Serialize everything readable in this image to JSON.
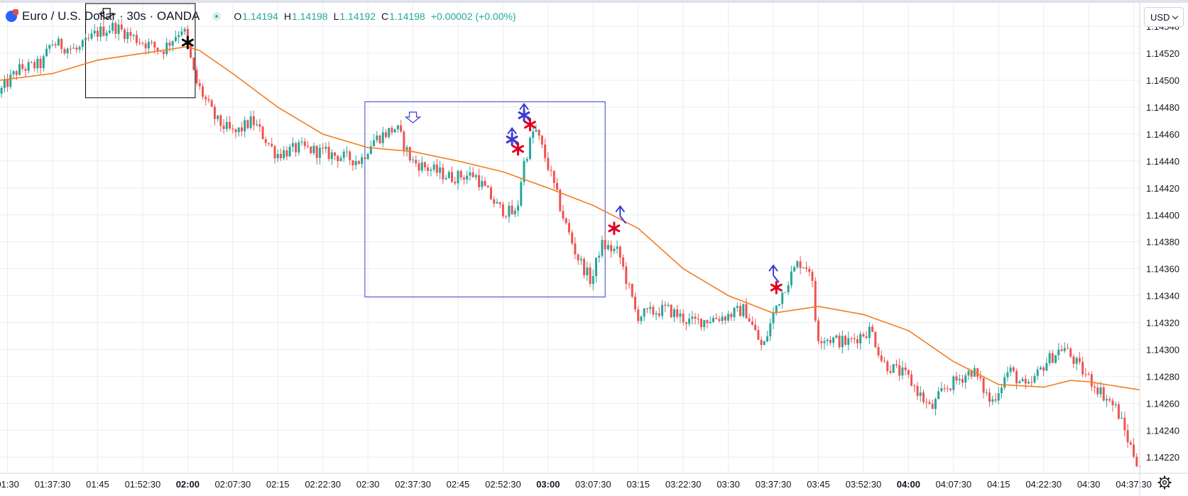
{
  "legend": {
    "symbol_title": "Euro / U.S. Dollar · 30s · OANDA",
    "open_label": "O",
    "open": "1.14194",
    "high_label": "H",
    "high": "1.14198",
    "low_label": "L",
    "low": "1.14192",
    "close_label": "C",
    "close": "1.14198",
    "change": "+0.00002 (+0.00%)"
  },
  "currency_button": "USD",
  "colors": {
    "up": "#26a69a",
    "down": "#ef5350",
    "ma": "#f57c1f",
    "grid": "#e9eef4",
    "box_black": "#000000",
    "box_blue": "#3d3dc8",
    "marker_red": "#e00020",
    "marker_blue": "#3b3bd0"
  },
  "chart_data": {
    "type": "candlestick",
    "title": "Euro / U.S. Dollar · 30s · OANDA",
    "y_axis": {
      "ticks": [
        "1.14540",
        "1.14520",
        "1.14500",
        "1.14480",
        "1.14460",
        "1.14440",
        "1.14420",
        "1.14400",
        "1.14380",
        "1.14360",
        "1.14340",
        "1.14320",
        "1.14300",
        "1.14280",
        "1.14260",
        "1.14240",
        "1.14220"
      ],
      "range": [
        1.14208,
        1.14557
      ]
    },
    "x_axis": {
      "ticks": [
        {
          "label": "01:30",
          "bold": false
        },
        {
          "label": "01:37:30",
          "bold": false
        },
        {
          "label": "01:45",
          "bold": false
        },
        {
          "label": "01:52:30",
          "bold": false
        },
        {
          "label": "02:00",
          "bold": true
        },
        {
          "label": "02:07:30",
          "bold": false
        },
        {
          "label": "02:15",
          "bold": false
        },
        {
          "label": "02:22:30",
          "bold": false
        },
        {
          "label": "02:30",
          "bold": false
        },
        {
          "label": "02:37:30",
          "bold": false
        },
        {
          "label": "02:45",
          "bold": false
        },
        {
          "label": "02:52:30",
          "bold": false
        },
        {
          "label": "03:00",
          "bold": true
        },
        {
          "label": "03:07:30",
          "bold": false
        },
        {
          "label": "03:15",
          "bold": false
        },
        {
          "label": "03:22:30",
          "bold": false
        },
        {
          "label": "03:30",
          "bold": false
        },
        {
          "label": "03:37:30",
          "bold": false
        },
        {
          "label": "03:45",
          "bold": false
        },
        {
          "label": "03:52:30",
          "bold": false
        },
        {
          "label": "04:00",
          "bold": true
        },
        {
          "label": "04:07:30",
          "bold": false
        },
        {
          "label": "04:15",
          "bold": false
        },
        {
          "label": "04:22:30",
          "bold": false
        },
        {
          "label": "04:30",
          "bold": false
        },
        {
          "label": "04:37:30",
          "bold": false
        }
      ],
      "range": [
        "01:28:45",
        "04:38:30"
      ]
    },
    "price_path": [
      [
        "01:28:45",
        1.1449
      ],
      [
        "01:32:00",
        1.14508
      ],
      [
        "01:36:00",
        1.14512
      ],
      [
        "01:37:30",
        1.14528
      ],
      [
        "01:42:00",
        1.14522
      ],
      [
        "01:45:00",
        1.14535
      ],
      [
        "01:48:00",
        1.1454
      ],
      [
        "01:52:00",
        1.1453
      ],
      [
        "01:56:00",
        1.14522
      ],
      [
        "01:59:30",
        1.1454
      ],
      [
        "02:01:30",
        1.145
      ],
      [
        "02:05:00",
        1.1447
      ],
      [
        "02:08:00",
        1.1446
      ],
      [
        "02:11:00",
        1.1447
      ],
      [
        "02:15:00",
        1.14445
      ],
      [
        "02:19:00",
        1.1445
      ],
      [
        "02:24:00",
        1.14445
      ],
      [
        "02:29:00",
        1.1444
      ],
      [
        "02:31:00",
        1.14455
      ],
      [
        "02:35:00",
        1.14465
      ],
      [
        "02:37:30",
        1.1444
      ],
      [
        "02:40:00",
        1.14435
      ],
      [
        "02:44:00",
        1.14428
      ],
      [
        "02:48:00",
        1.1443
      ],
      [
        "02:52:00",
        1.14405
      ],
      [
        "02:55:00",
        1.144
      ],
      [
        "02:56:00",
        1.14435
      ],
      [
        "02:58:00",
        1.14465
      ],
      [
        "03:00:00",
        1.1444
      ],
      [
        "03:03:00",
        1.14395
      ],
      [
        "03:05:00",
        1.1437
      ],
      [
        "03:07:30",
        1.1435
      ],
      [
        "03:09:00",
        1.14378
      ],
      [
        "03:12:00",
        1.14372
      ],
      [
        "03:15:00",
        1.14325
      ],
      [
        "03:20:00",
        1.1433
      ],
      [
        "03:24:00",
        1.1432
      ],
      [
        "03:30:00",
        1.14325
      ],
      [
        "03:33:00",
        1.1433
      ],
      [
        "03:36:00",
        1.143
      ],
      [
        "03:38:00",
        1.1433
      ],
      [
        "03:40:00",
        1.1435
      ],
      [
        "03:42:00",
        1.14365
      ],
      [
        "03:44:00",
        1.1436
      ],
      [
        "03:45:00",
        1.1431
      ],
      [
        "03:50:00",
        1.14305
      ],
      [
        "03:54:00",
        1.14315
      ],
      [
        "03:56:00",
        1.1429
      ],
      [
        "04:00:00",
        1.1428
      ],
      [
        "04:04:00",
        1.14255
      ],
      [
        "04:06:00",
        1.1427
      ],
      [
        "04:11:00",
        1.14285
      ],
      [
        "04:14:00",
        1.1426
      ],
      [
        "04:17:00",
        1.14285
      ],
      [
        "04:20:00",
        1.1427
      ],
      [
        "04:23:00",
        1.1429
      ],
      [
        "04:26:00",
        1.14302
      ],
      [
        "04:29:00",
        1.14285
      ],
      [
        "04:32:00",
        1.1427
      ],
      [
        "04:35:00",
        1.14255
      ],
      [
        "04:37:00",
        1.1423
      ],
      [
        "04:38:30",
        1.14215
      ]
    ],
    "moving_average": [
      [
        "01:28:45",
        1.145
      ],
      [
        "01:37:30",
        1.14505
      ],
      [
        "01:45:00",
        1.14515
      ],
      [
        "01:52:30",
        1.1452
      ],
      [
        "01:57:00",
        1.14523
      ],
      [
        "02:00:00",
        1.14525
      ],
      [
        "02:02:00",
        1.14522
      ],
      [
        "02:07:30",
        1.14505
      ],
      [
        "02:15:00",
        1.1448
      ],
      [
        "02:22:30",
        1.1446
      ],
      [
        "02:30:00",
        1.1445
      ],
      [
        "02:37:30",
        1.14447
      ],
      [
        "02:45:00",
        1.1444
      ],
      [
        "02:52:30",
        1.14432
      ],
      [
        "03:00:00",
        1.1442
      ],
      [
        "03:07:30",
        1.14407
      ],
      [
        "03:15:00",
        1.1439
      ],
      [
        "03:22:30",
        1.1436
      ],
      [
        "03:30:00",
        1.1434
      ],
      [
        "03:37:30",
        1.14327
      ],
      [
        "03:45:00",
        1.14332
      ],
      [
        "03:52:30",
        1.14326
      ],
      [
        "04:00:00",
        1.14314
      ],
      [
        "04:07:30",
        1.14291
      ],
      [
        "04:15:00",
        1.14274
      ],
      [
        "04:22:30",
        1.14272
      ],
      [
        "04:27:00",
        1.14277
      ],
      [
        "04:30:00",
        1.14276
      ],
      [
        "04:38:30",
        1.1427
      ]
    ],
    "rectangles": [
      {
        "color": "black",
        "from": "01:43:00",
        "to": "02:01:15",
        "top": 1.14557,
        "bottom": 1.14487
      },
      {
        "color": "blue",
        "from": "02:29:30",
        "to": "03:09:30",
        "top": 1.14484,
        "bottom": 1.14339
      }
    ],
    "markers": [
      {
        "kind": "arrow-down",
        "color": "black",
        "time": "01:46:30",
        "price": 1.14547
      },
      {
        "kind": "asterisk",
        "color": "black",
        "time": "02:00:00",
        "price": 1.14528
      },
      {
        "kind": "arrow-down",
        "color": "blue",
        "time": "02:37:30",
        "price": 1.1447
      },
      {
        "kind": "asterisk",
        "color": "blue",
        "time": "02:54:00",
        "price": 1.14456
      },
      {
        "kind": "arrow-up",
        "color": "blue",
        "time": "02:54:00",
        "price": 1.14457
      },
      {
        "kind": "asterisk",
        "color": "blue",
        "time": "02:56:00",
        "price": 1.14474
      },
      {
        "kind": "arrow-up",
        "color": "blue",
        "time": "02:56:00",
        "price": 1.14475
      },
      {
        "kind": "asterisk",
        "color": "red",
        "time": "02:55:00",
        "price": 1.14449
      },
      {
        "kind": "asterisk",
        "color": "red",
        "time": "02:57:00",
        "price": 1.14467
      },
      {
        "kind": "asterisk",
        "color": "red",
        "time": "03:11:00",
        "price": 1.1439
      },
      {
        "kind": "arrow-up",
        "color": "blue",
        "time": "03:12:00",
        "price": 1.14399
      },
      {
        "kind": "asterisk",
        "color": "red",
        "time": "03:38:00",
        "price": 1.14346
      },
      {
        "kind": "arrow-up",
        "color": "blue",
        "time": "03:37:30",
        "price": 1.14355
      }
    ]
  }
}
